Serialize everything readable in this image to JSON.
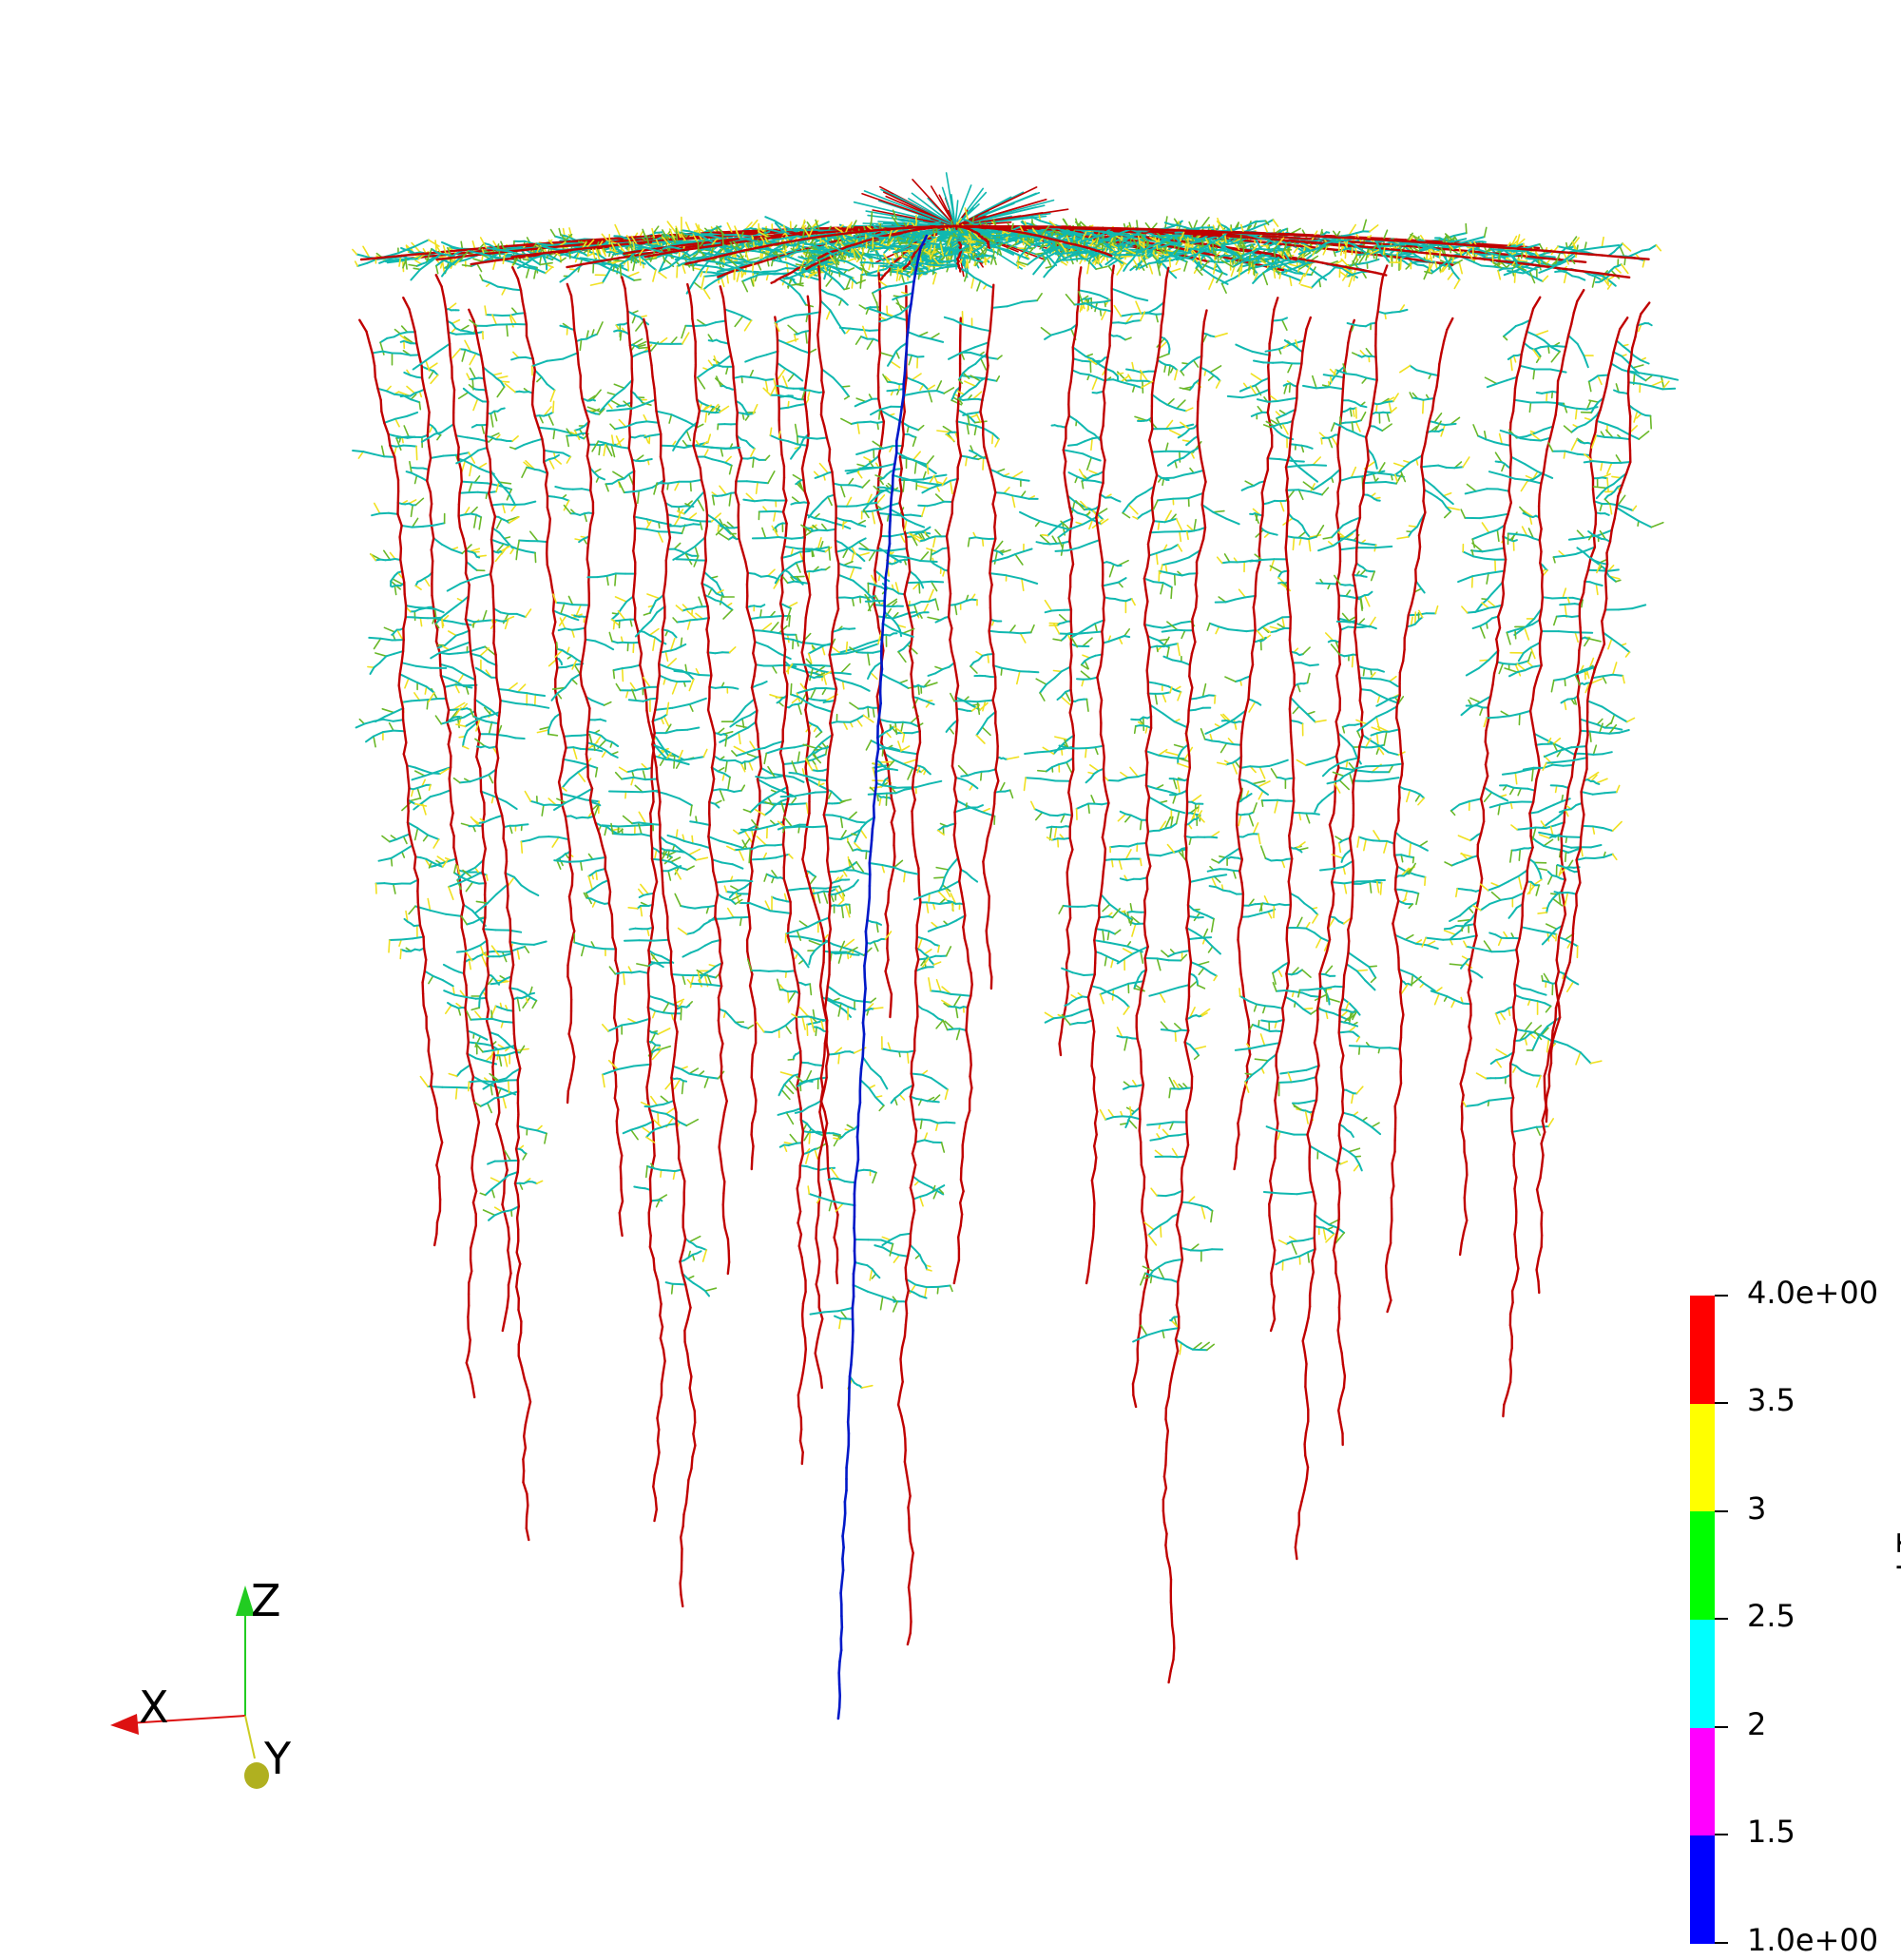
{
  "scene": {
    "background": "#ffffff",
    "subject": "root system architecture render",
    "colors": {
      "taproot": "#0018c8",
      "main_roots": "#c00000",
      "laterals": "#10b8b0",
      "fine_laterals": "#6ab828",
      "tips": "#f0e020"
    }
  },
  "orientation_axes": {
    "z_label": "Z",
    "x_label": "X",
    "y_label": "Y",
    "z_color": "#22cc22",
    "x_color": "#dd1111",
    "y_color": "#cccc22"
  },
  "legend": {
    "title": "subType",
    "colors": [
      "#0000ff",
      "#ff00ff",
      "#00ffff",
      "#00ff00",
      "#ffff00",
      "#ff0000"
    ],
    "ticks": [
      "4.0e+00",
      "3.5",
      "3",
      "2.5",
      "2",
      "1.5",
      "1.0e+00"
    ]
  }
}
